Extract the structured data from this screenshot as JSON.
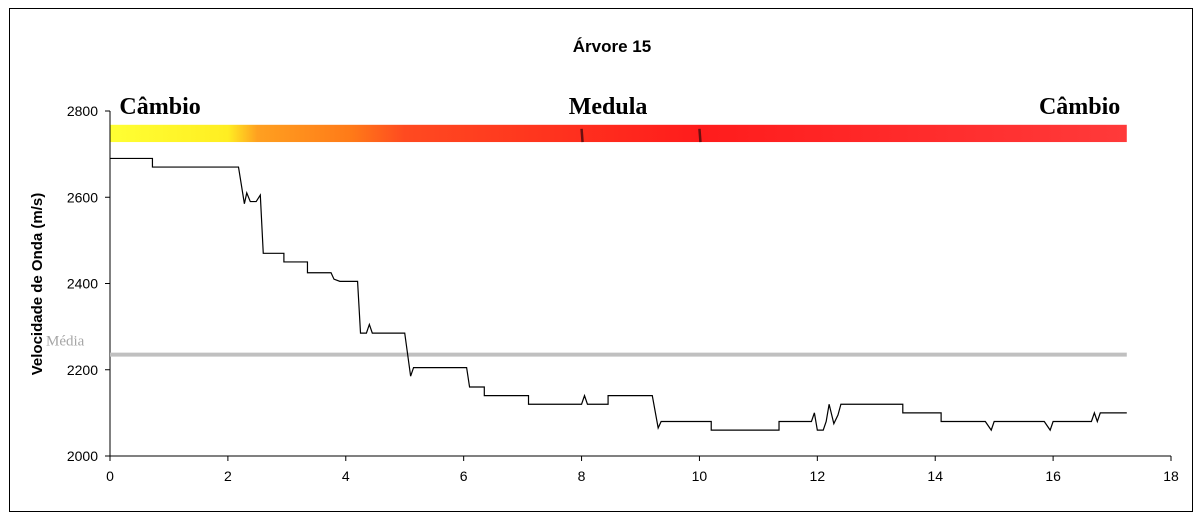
{
  "chart_data": {
    "type": "line",
    "title": "Árvore 15",
    "xlabel": "",
    "ylabel": "Velocidade de Onda (m/s)",
    "xlim": [
      0,
      18
    ],
    "ylim": [
      2000,
      2800
    ],
    "x_ticks": [
      0,
      2,
      4,
      6,
      8,
      10,
      12,
      14,
      16,
      18
    ],
    "y_ticks": [
      2000,
      2200,
      2400,
      2600,
      2800
    ],
    "grid": false,
    "legend": "none",
    "series": [
      {
        "color": "#000000",
        "points": [
          [
            0,
            2690
          ],
          [
            0.72,
            2690
          ],
          [
            0.72,
            2670
          ],
          [
            2.18,
            2670
          ],
          [
            2.28,
            2585
          ],
          [
            2.32,
            2610
          ],
          [
            2.38,
            2590
          ],
          [
            2.48,
            2590
          ],
          [
            2.55,
            2605
          ],
          [
            2.6,
            2470
          ],
          [
            2.95,
            2470
          ],
          [
            2.95,
            2450
          ],
          [
            3.35,
            2450
          ],
          [
            3.35,
            2425
          ],
          [
            3.75,
            2425
          ],
          [
            3.8,
            2410
          ],
          [
            3.9,
            2405
          ],
          [
            4.2,
            2405
          ],
          [
            4.25,
            2285
          ],
          [
            4.35,
            2285
          ],
          [
            4.4,
            2305
          ],
          [
            4.45,
            2285
          ],
          [
            5.0,
            2285
          ],
          [
            5.1,
            2185
          ],
          [
            5.15,
            2205
          ],
          [
            6.05,
            2205
          ],
          [
            6.1,
            2160
          ],
          [
            6.35,
            2160
          ],
          [
            6.35,
            2140
          ],
          [
            7.1,
            2140
          ],
          [
            7.1,
            2120
          ],
          [
            8.0,
            2120
          ],
          [
            8.05,
            2140
          ],
          [
            8.1,
            2120
          ],
          [
            8.45,
            2120
          ],
          [
            8.45,
            2140
          ],
          [
            9.2,
            2140
          ],
          [
            9.3,
            2065
          ],
          [
            9.35,
            2080
          ],
          [
            10.2,
            2080
          ],
          [
            10.2,
            2060
          ],
          [
            11.35,
            2060
          ],
          [
            11.35,
            2080
          ],
          [
            11.9,
            2080
          ],
          [
            11.95,
            2100
          ],
          [
            12.0,
            2060
          ],
          [
            12.1,
            2060
          ],
          [
            12.15,
            2080
          ],
          [
            12.2,
            2120
          ],
          [
            12.28,
            2075
          ],
          [
            12.35,
            2095
          ],
          [
            12.4,
            2120
          ],
          [
            13.45,
            2120
          ],
          [
            13.45,
            2100
          ],
          [
            14.1,
            2100
          ],
          [
            14.1,
            2080
          ],
          [
            14.85,
            2080
          ],
          [
            14.95,
            2060
          ],
          [
            15.0,
            2080
          ],
          [
            15.85,
            2080
          ],
          [
            15.95,
            2060
          ],
          [
            16.0,
            2080
          ],
          [
            16.65,
            2080
          ],
          [
            16.7,
            2100
          ],
          [
            16.75,
            2080
          ],
          [
            16.8,
            2100
          ],
          [
            17.25,
            2100
          ]
        ]
      }
    ],
    "reference_line": {
      "label": "Média",
      "value": 2235,
      "color": "#c0c0c0"
    },
    "region_labels": [
      {
        "text": "Câmbio",
        "x": 0.85
      },
      {
        "text": "Medula",
        "x": 8.45
      },
      {
        "text": "Câmbio",
        "x": 16.45
      }
    ],
    "gradient_bar": {
      "x_start": 0,
      "x_end": 17.25,
      "y_top": 2768,
      "y_bottom": 2728,
      "color_stops": [
        {
          "x": 0,
          "color": "#ffff33"
        },
        {
          "x": 2.0,
          "color": "#ffee22"
        },
        {
          "x": 2.5,
          "color": "#ffa020"
        },
        {
          "x": 4.1,
          "color": "#ff7a18"
        },
        {
          "x": 5.0,
          "color": "#ff4a20"
        },
        {
          "x": 10.0,
          "color": "#ff1c1c"
        },
        {
          "x": 17.25,
          "color": "#ff3a3a"
        }
      ],
      "dark_marks": [
        8.0,
        10.0
      ]
    }
  }
}
